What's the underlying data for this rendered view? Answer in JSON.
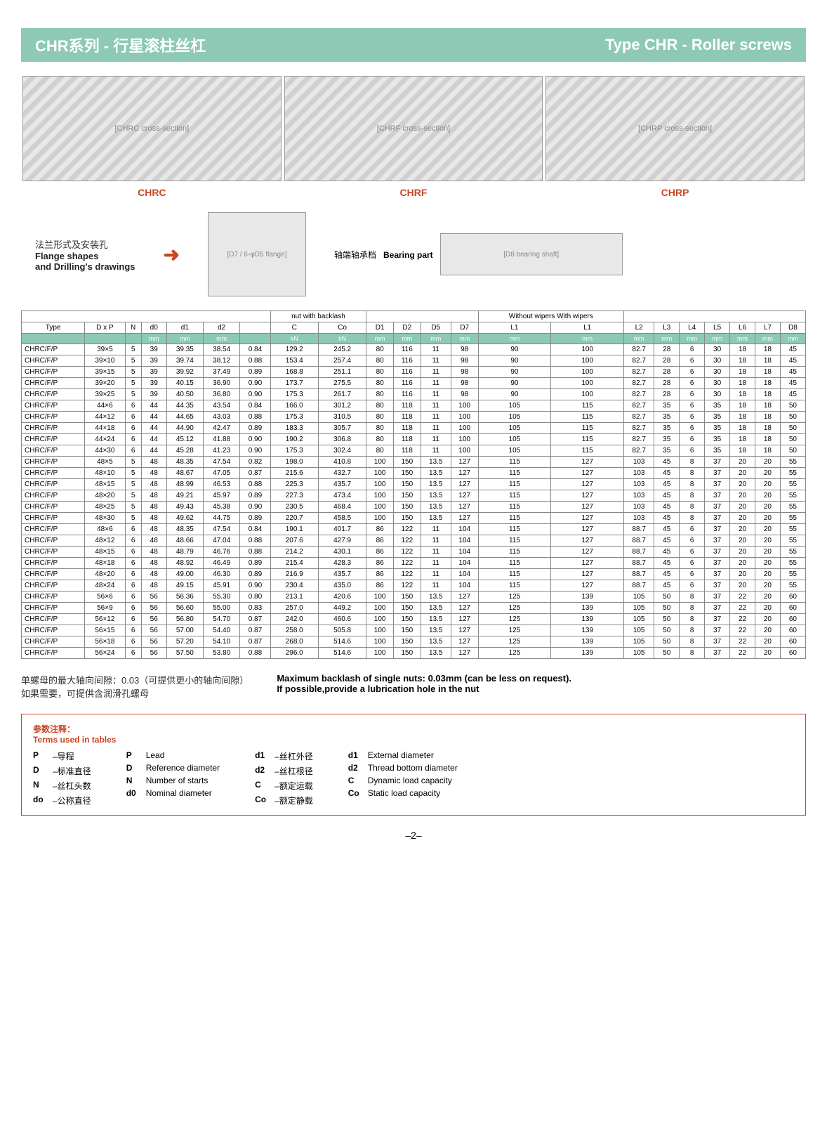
{
  "title": {
    "left": "CHR系列 - 行星滚柱丝杠",
    "right": "Type CHR - Roller screws"
  },
  "diagrams": [
    {
      "label": "CHRC",
      "alt": "[CHRC cross-section]"
    },
    {
      "label": "CHRF",
      "alt": "[CHRF cross-section]"
    },
    {
      "label": "CHRP",
      "alt": "[CHRP cross-section]"
    }
  ],
  "flange": {
    "cn": "法兰形式及安装孔",
    "en1": "Flange shapes",
    "en2": "and Drilling's drawings",
    "drawing_alt": "[D7 / 6-φD5 flange]",
    "bearing_cn": "轴端轴承档",
    "bearing_en": "Bearing part",
    "bearing_alt": "[D8 bearing shaft]"
  },
  "table": {
    "group_headers": {
      "nut": "nut with backlash",
      "wipers": "Without wipers With wipers"
    },
    "columns": [
      "Type",
      "D x P",
      "N",
      "d0",
      "d1",
      "d2",
      "",
      "C",
      "Co",
      "D1",
      "D2",
      "D5",
      "D7",
      "L1",
      "L1",
      "L2",
      "L3",
      "L4",
      "L5",
      "L6",
      "L7",
      "D8"
    ],
    "units": [
      "",
      "",
      "",
      "mm",
      "mm",
      "mm",
      "",
      "kN",
      "kN",
      "mm",
      "mm",
      "mm",
      "mm",
      "mm",
      "mm",
      "mm",
      "mm",
      "mm",
      "mm",
      "mm",
      "mm",
      "mm"
    ],
    "rows": [
      [
        "CHRC/F/P",
        "39×5",
        "5",
        "39",
        "39.35",
        "38.54",
        "0.84",
        "129.2",
        "245.2",
        "80",
        "116",
        "11",
        "98",
        "90",
        "100",
        "82.7",
        "28",
        "6",
        "30",
        "18",
        "18",
        "45"
      ],
      [
        "CHRC/F/P",
        "39×10",
        "5",
        "39",
        "39.74",
        "38.12",
        "0.88",
        "153.4",
        "257.4",
        "80",
        "116",
        "11",
        "98",
        "90",
        "100",
        "82.7",
        "28",
        "6",
        "30",
        "18",
        "18",
        "45"
      ],
      [
        "CHRC/F/P",
        "39×15",
        "5",
        "39",
        "39.92",
        "37.49",
        "0.89",
        "168.8",
        "251.1",
        "80",
        "116",
        "11",
        "98",
        "90",
        "100",
        "82.7",
        "28",
        "6",
        "30",
        "18",
        "18",
        "45"
      ],
      [
        "CHRC/F/P",
        "39×20",
        "5",
        "39",
        "40.15",
        "36.90",
        "0.90",
        "173.7",
        "275.5",
        "80",
        "116",
        "11",
        "98",
        "90",
        "100",
        "82.7",
        "28",
        "6",
        "30",
        "18",
        "18",
        "45"
      ],
      [
        "CHRC/F/P",
        "39×25",
        "5",
        "39",
        "40.50",
        "36.80",
        "0.90",
        "175.3",
        "261.7",
        "80",
        "116",
        "11",
        "98",
        "90",
        "100",
        "82.7",
        "28",
        "6",
        "30",
        "18",
        "18",
        "45"
      ],
      [
        "CHRC/F/P",
        "44×6",
        "6",
        "44",
        "44.35",
        "43.54",
        "0.84",
        "166.0",
        "301.2",
        "80",
        "118",
        "11",
        "100",
        "105",
        "115",
        "82.7",
        "35",
        "6",
        "35",
        "18",
        "18",
        "50"
      ],
      [
        "CHRC/F/P",
        "44×12",
        "6",
        "44",
        "44.65",
        "43.03",
        "0.88",
        "175.3",
        "310.5",
        "80",
        "118",
        "11",
        "100",
        "105",
        "115",
        "82.7",
        "35",
        "6",
        "35",
        "18",
        "18",
        "50"
      ],
      [
        "CHRC/F/P",
        "44×18",
        "6",
        "44",
        "44.90",
        "42.47",
        "0.89",
        "183.3",
        "305.7",
        "80",
        "118",
        "11",
        "100",
        "105",
        "115",
        "82.7",
        "35",
        "6",
        "35",
        "18",
        "18",
        "50"
      ],
      [
        "CHRC/F/P",
        "44×24",
        "6",
        "44",
        "45.12",
        "41.88",
        "0.90",
        "190.2",
        "306.8",
        "80",
        "118",
        "11",
        "100",
        "105",
        "115",
        "82.7",
        "35",
        "6",
        "35",
        "18",
        "18",
        "50"
      ],
      [
        "CHRC/F/P",
        "44×30",
        "6",
        "44",
        "45.28",
        "41.23",
        "0.90",
        "175.3",
        "302.4",
        "80",
        "118",
        "11",
        "100",
        "105",
        "115",
        "82.7",
        "35",
        "6",
        "35",
        "18",
        "18",
        "50"
      ],
      [
        "CHRC/F/P",
        "48×5",
        "5",
        "48",
        "48.35",
        "47.54",
        "0.82",
        "198.0",
        "410.8",
        "100",
        "150",
        "13.5",
        "127",
        "115",
        "127",
        "103",
        "45",
        "8",
        "37",
        "20",
        "20",
        "55"
      ],
      [
        "CHRC/F/P",
        "48×10",
        "5",
        "48",
        "48.67",
        "47.05",
        "0.87",
        "215.6",
        "432.7",
        "100",
        "150",
        "13.5",
        "127",
        "115",
        "127",
        "103",
        "45",
        "8",
        "37",
        "20",
        "20",
        "55"
      ],
      [
        "CHRC/F/P",
        "48×15",
        "5",
        "48",
        "48.99",
        "46.53",
        "0.88",
        "225.3",
        "435.7",
        "100",
        "150",
        "13.5",
        "127",
        "115",
        "127",
        "103",
        "45",
        "8",
        "37",
        "20",
        "20",
        "55"
      ],
      [
        "CHRC/F/P",
        "48×20",
        "5",
        "48",
        "49.21",
        "45.97",
        "0.89",
        "227.3",
        "473.4",
        "100",
        "150",
        "13.5",
        "127",
        "115",
        "127",
        "103",
        "45",
        "8",
        "37",
        "20",
        "20",
        "55"
      ],
      [
        "CHRC/F/P",
        "48×25",
        "5",
        "48",
        "49.43",
        "45.38",
        "0.90",
        "230.5",
        "468.4",
        "100",
        "150",
        "13.5",
        "127",
        "115",
        "127",
        "103",
        "45",
        "8",
        "37",
        "20",
        "20",
        "55"
      ],
      [
        "CHRC/F/P",
        "48×30",
        "5",
        "48",
        "49.62",
        "44.75",
        "0.89",
        "220.7",
        "458.5",
        "100",
        "150",
        "13.5",
        "127",
        "115",
        "127",
        "103",
        "45",
        "8",
        "37",
        "20",
        "20",
        "55"
      ],
      [
        "CHRC/F/P",
        "48×6",
        "6",
        "48",
        "48.35",
        "47.54",
        "0.84",
        "190.1",
        "401.7",
        "86",
        "122",
        "11",
        "104",
        "115",
        "127",
        "88.7",
        "45",
        "6",
        "37",
        "20",
        "20",
        "55"
      ],
      [
        "CHRC/F/P",
        "48×12",
        "6",
        "48",
        "48.66",
        "47.04",
        "0.88",
        "207.6",
        "427.9",
        "86",
        "122",
        "11",
        "104",
        "115",
        "127",
        "88.7",
        "45",
        "6",
        "37",
        "20",
        "20",
        "55"
      ],
      [
        "CHRC/F/P",
        "48×15",
        "6",
        "48",
        "48.79",
        "46.76",
        "0.88",
        "214.2",
        "430.1",
        "86",
        "122",
        "11",
        "104",
        "115",
        "127",
        "88.7",
        "45",
        "6",
        "37",
        "20",
        "20",
        "55"
      ],
      [
        "CHRC/F/P",
        "48×18",
        "6",
        "48",
        "48.92",
        "46.49",
        "0.89",
        "215.4",
        "428.3",
        "86",
        "122",
        "11",
        "104",
        "115",
        "127",
        "88.7",
        "45",
        "6",
        "37",
        "20",
        "20",
        "55"
      ],
      [
        "CHRC/F/P",
        "48×20",
        "6",
        "48",
        "49.00",
        "46.30",
        "0.89",
        "216.9",
        "435.7",
        "86",
        "122",
        "11",
        "104",
        "115",
        "127",
        "88.7",
        "45",
        "6",
        "37",
        "20",
        "20",
        "55"
      ],
      [
        "CHRC/F/P",
        "48×24",
        "6",
        "48",
        "49.15",
        "45.91",
        "0.90",
        "230.4",
        "435.0",
        "86",
        "122",
        "11",
        "104",
        "115",
        "127",
        "88.7",
        "45",
        "6",
        "37",
        "20",
        "20",
        "55"
      ],
      [
        "CHRC/F/P",
        "56×6",
        "6",
        "56",
        "56.36",
        "55.30",
        "0.80",
        "213.1",
        "420.6",
        "100",
        "150",
        "13.5",
        "127",
        "125",
        "139",
        "105",
        "50",
        "8",
        "37",
        "22",
        "20",
        "60"
      ],
      [
        "CHRC/F/P",
        "56×9",
        "6",
        "56",
        "56.60",
        "55.00",
        "0.83",
        "257.0",
        "449.2",
        "100",
        "150",
        "13.5",
        "127",
        "125",
        "139",
        "105",
        "50",
        "8",
        "37",
        "22",
        "20",
        "60"
      ],
      [
        "CHRC/F/P",
        "56×12",
        "6",
        "56",
        "56.80",
        "54.70",
        "0.87",
        "242.0",
        "460.6",
        "100",
        "150",
        "13.5",
        "127",
        "125",
        "139",
        "105",
        "50",
        "8",
        "37",
        "22",
        "20",
        "60"
      ],
      [
        "CHRC/F/P",
        "56×15",
        "6",
        "56",
        "57.00",
        "54.40",
        "0.87",
        "258.0",
        "505.8",
        "100",
        "150",
        "13.5",
        "127",
        "125",
        "139",
        "105",
        "50",
        "8",
        "37",
        "22",
        "20",
        "60"
      ],
      [
        "CHRC/F/P",
        "56×18",
        "6",
        "56",
        "57.20",
        "54.10",
        "0.87",
        "268.0",
        "514.6",
        "100",
        "150",
        "13.5",
        "127",
        "125",
        "139",
        "105",
        "50",
        "8",
        "37",
        "22",
        "20",
        "60"
      ],
      [
        "CHRC/F/P",
        "56×24",
        "6",
        "56",
        "57.50",
        "53.80",
        "0.88",
        "296.0",
        "514.6",
        "100",
        "150",
        "13.5",
        "127",
        "125",
        "139",
        "105",
        "50",
        "8",
        "37",
        "22",
        "20",
        "60"
      ]
    ]
  },
  "notes": {
    "line1_cn": "单螺母的最大轴向间隙：0.03（可提供更小的轴向间隙）",
    "line1_en": "Maximum backlash of single nuts: 0.03mm (can be less on request).",
    "line2_cn": "如果需要，可提供含润滑孔螺母",
    "line2_en": "If possible,provide a lubrication hole in the nut"
  },
  "terms": {
    "header_cn": "参数注释：",
    "header_en": "Terms used in tables",
    "cols": [
      [
        {
          "sym": "P",
          "txt": "–导程"
        },
        {
          "sym": "D",
          "txt": "–标准直径"
        },
        {
          "sym": "N",
          "txt": "–丝杠头数"
        },
        {
          "sym": "do",
          "txt": "–公称直径"
        }
      ],
      [
        {
          "sym": "P",
          "txt": "Lead"
        },
        {
          "sym": "D",
          "txt": "Reference diameter"
        },
        {
          "sym": "N",
          "txt": "Number of starts"
        },
        {
          "sym": "d0",
          "txt": "Nominal diameter"
        }
      ],
      [
        {
          "sym": "d1",
          "txt": "–丝杠外径"
        },
        {
          "sym": "d2",
          "txt": "–丝杠根径"
        },
        {
          "sym": "C",
          "txt": "–额定运载"
        },
        {
          "sym": "Co",
          "txt": "–额定静载"
        }
      ],
      [
        {
          "sym": "d1",
          "txt": "External diameter"
        },
        {
          "sym": "d2",
          "txt": "Thread bottom diameter"
        },
        {
          "sym": "C",
          "txt": "Dynamic load capacity"
        },
        {
          "sym": "Co",
          "txt": "Static load capacity"
        }
      ]
    ]
  },
  "page_num": "–2–"
}
